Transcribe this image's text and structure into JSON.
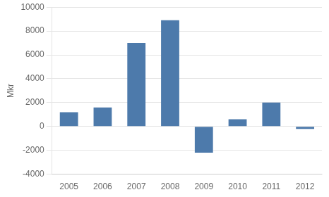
{
  "chart_data": {
    "type": "bar",
    "ylabel": "Mkr",
    "categories": [
      "2005",
      "2006",
      "2007",
      "2008",
      "2009",
      "2010",
      "2011",
      "2012"
    ],
    "values": [
      1200,
      1600,
      7000,
      8900,
      -2200,
      600,
      2000,
      -200
    ],
    "color": "#4d7aab",
    "ylim": [
      -4000,
      10000
    ],
    "yticks": [
      -4000,
      -2000,
      0,
      2000,
      4000,
      6000,
      8000,
      10000
    ],
    "grid": "y"
  }
}
